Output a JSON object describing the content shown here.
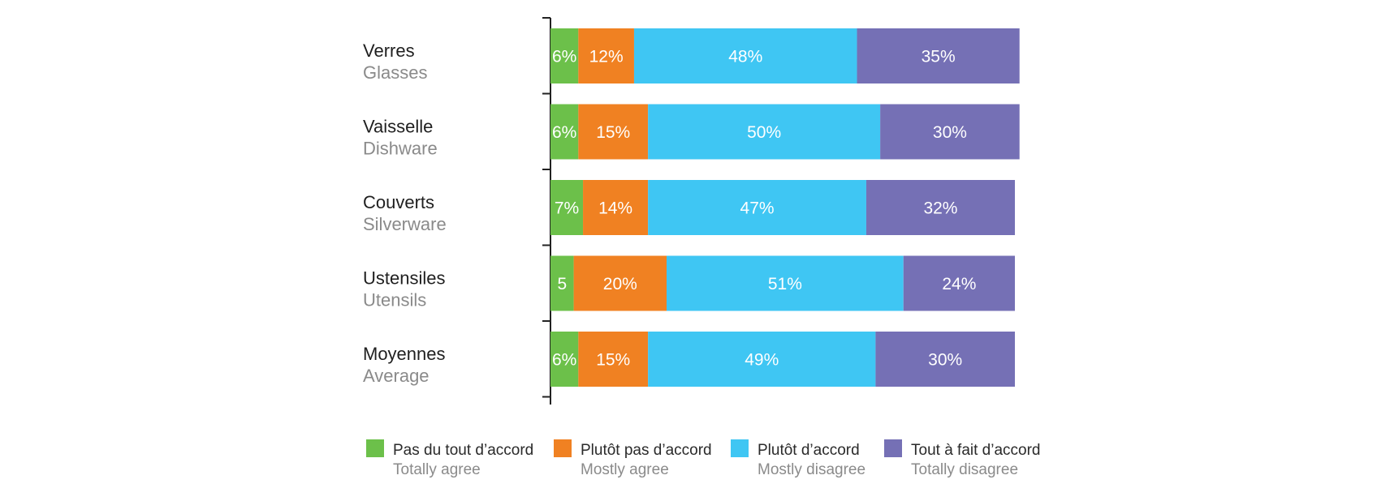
{
  "chart_data": {
    "type": "bar",
    "orientation": "horizontal",
    "stacked": true,
    "categories": [
      {
        "label": "Verres",
        "sublabel": "Glasses"
      },
      {
        "label": "Vaisselle",
        "sublabel": "Dishware"
      },
      {
        "label": "Couverts",
        "sublabel": "Silverware"
      },
      {
        "label": "Ustensiles",
        "sublabel": "Utensils"
      },
      {
        "label": "Moyennes",
        "sublabel": "Average"
      }
    ],
    "series": [
      {
        "name": "Pas du tout d’accord",
        "name_en": "Totally agree",
        "color": "#6cc04a",
        "values": [
          6,
          6,
          7,
          5,
          6
        ],
        "labels": [
          "6%",
          "6%",
          "7%",
          "5",
          "6%"
        ]
      },
      {
        "name": "Plutôt pas d’accord",
        "name_en": "Mostly agree",
        "color": "#f08122",
        "values": [
          12,
          15,
          14,
          20,
          15
        ],
        "labels": [
          "12%",
          "15%",
          "14%",
          "20%",
          "15%"
        ]
      },
      {
        "name": "Plutôt d’accord",
        "name_en": "Mostly disagree",
        "color": "#3fc6f3",
        "values": [
          48,
          50,
          47,
          51,
          49
        ],
        "labels": [
          "48%",
          "50%",
          "47%",
          "51%",
          "49%"
        ]
      },
      {
        "name": "Tout à fait d’accord",
        "name_en": "Totally disagree",
        "color": "#7570b5",
        "values": [
          35,
          30,
          32,
          24,
          30
        ],
        "labels": [
          "35%",
          "30%",
          "32%",
          "24%",
          "30%"
        ]
      }
    ],
    "xlim": [
      0,
      100
    ],
    "grid": false,
    "legend_position": "bottom"
  }
}
